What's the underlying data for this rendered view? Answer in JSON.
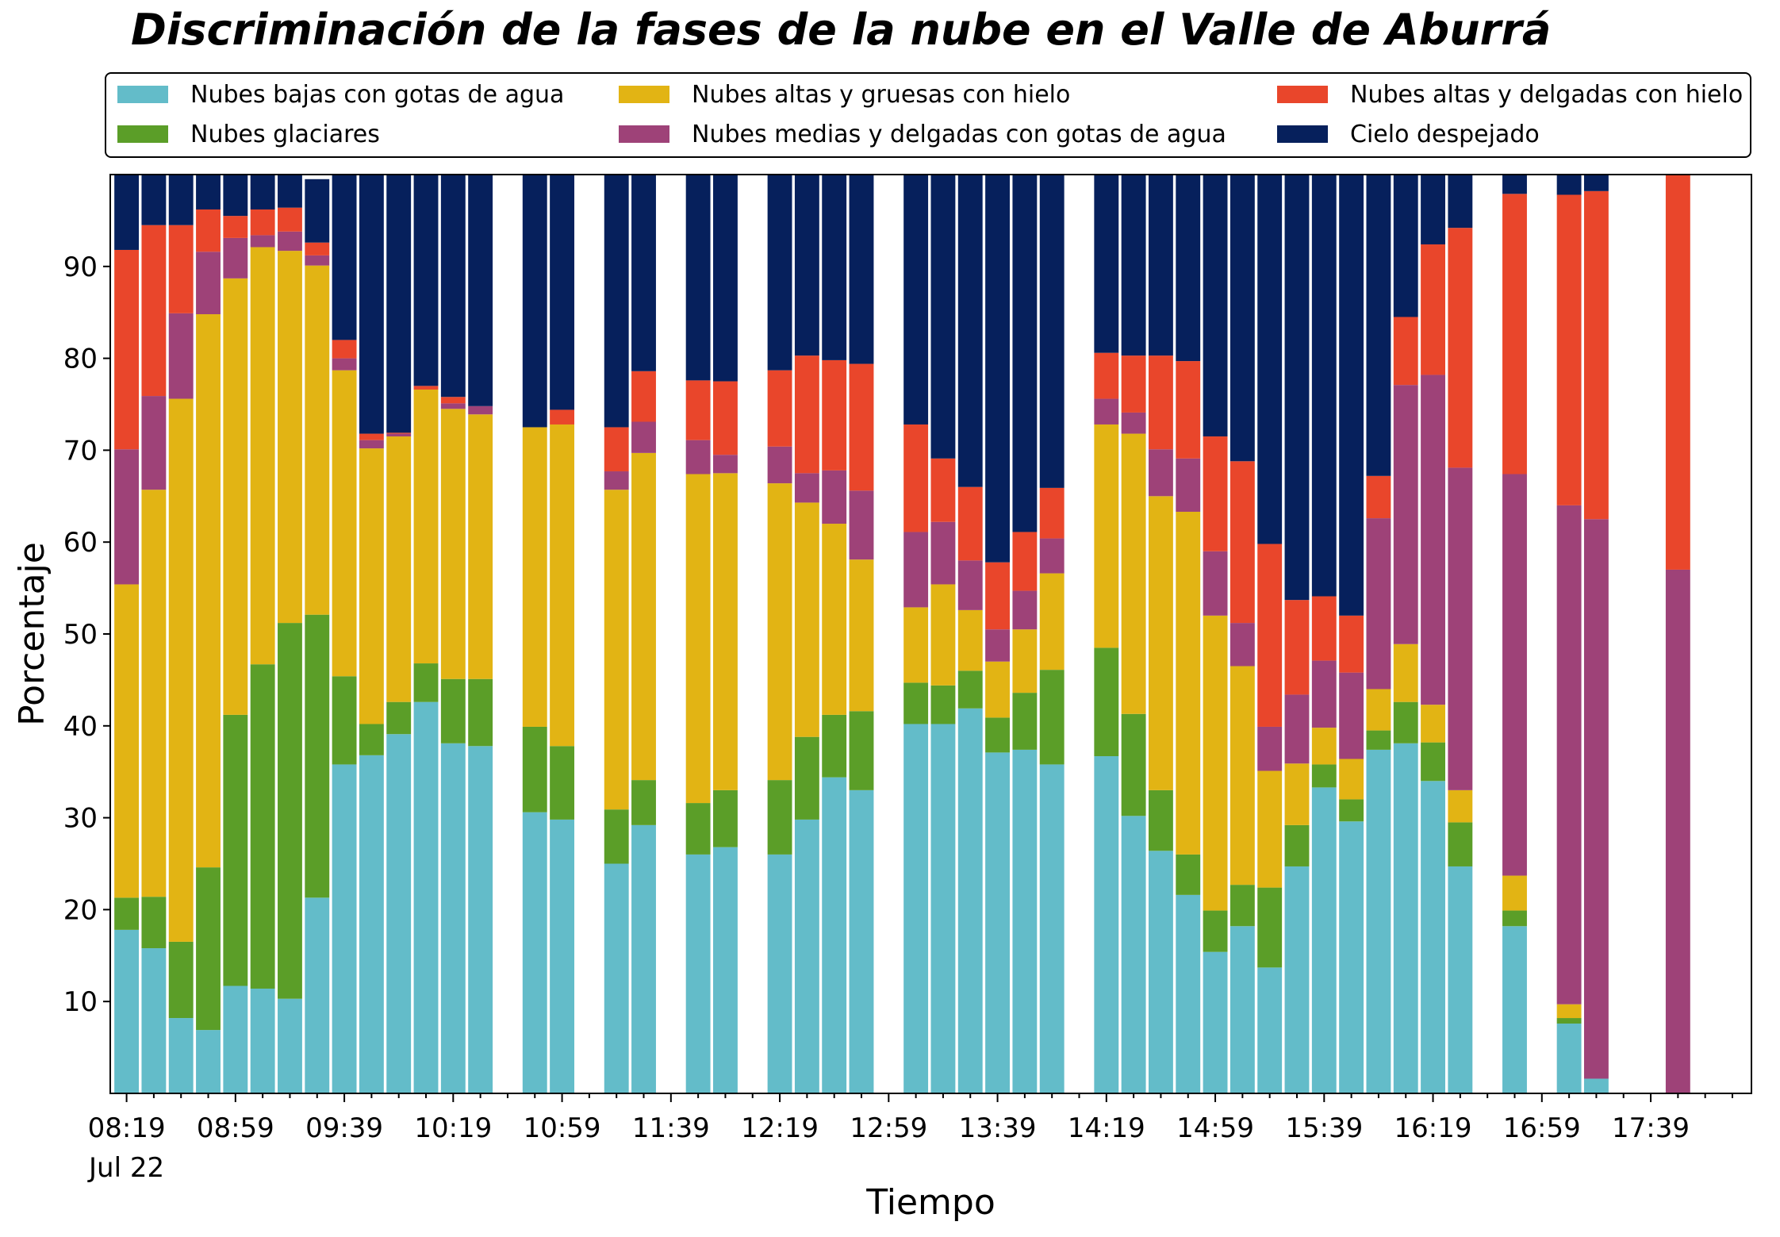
{
  "chart_data": {
    "type": "bar",
    "stacked": true,
    "title": "Discriminación de la fases de la nube en el Valle de Aburrá",
    "xlabel": "Tiempo",
    "ylabel": "Porcentaje",
    "ylim": [
      0,
      100
    ],
    "yticks": [
      10,
      20,
      30,
      40,
      50,
      60,
      70,
      80,
      90
    ],
    "grid": false,
    "legend_position": "top",
    "x_start_time": "08:19",
    "x_end_time": "18:09",
    "x_step_minutes": 10,
    "xticks": [
      {
        "time": "08:19",
        "label": "08:19",
        "sublabel": "Jul 22"
      },
      {
        "time": "08:59",
        "label": "08:59"
      },
      {
        "time": "09:39",
        "label": "09:39"
      },
      {
        "time": "10:19",
        "label": "10:19"
      },
      {
        "time": "10:59",
        "label": "10:59"
      },
      {
        "time": "11:39",
        "label": "11:39"
      },
      {
        "time": "12:19",
        "label": "12:19"
      },
      {
        "time": "12:59",
        "label": "12:59"
      },
      {
        "time": "13:39",
        "label": "13:39"
      },
      {
        "time": "14:19",
        "label": "14:19"
      },
      {
        "time": "14:59",
        "label": "14:59"
      },
      {
        "time": "15:39",
        "label": "15:39"
      },
      {
        "time": "16:19",
        "label": "16:19"
      },
      {
        "time": "16:59",
        "label": "16:59"
      },
      {
        "time": "17:39",
        "label": "17:39"
      }
    ],
    "categories": [
      "08:19",
      "08:29",
      "08:39",
      "08:49",
      "08:59",
      "09:09",
      "09:19",
      "09:29",
      "09:39",
      "09:49",
      "09:59",
      "10:09",
      "10:19",
      "10:29",
      "10:39",
      "10:49",
      "10:59",
      "11:09",
      "11:19",
      "11:29",
      "11:39",
      "11:49",
      "11:59",
      "12:09",
      "12:19",
      "12:29",
      "12:39",
      "12:49",
      "12:59",
      "13:09",
      "13:19",
      "13:29",
      "13:39",
      "13:49",
      "13:59",
      "14:09",
      "14:19",
      "14:29",
      "14:39",
      "14:49",
      "14:59",
      "15:09",
      "15:19",
      "15:29",
      "15:39",
      "15:49",
      "15:59",
      "16:09",
      "16:19",
      "16:29",
      "16:39",
      "16:49",
      "16:59",
      "17:09",
      "17:19",
      "17:29",
      "17:39",
      "17:49",
      "17:59",
      "18:09"
    ],
    "series": [
      {
        "name": "Nubes bajas con gotas de agua",
        "color": "#63bcc9",
        "values": [
          17.8,
          15.8,
          8.2,
          6.9,
          11.7,
          11.4,
          10.3,
          21.3,
          35.8,
          36.8,
          39.1,
          42.6,
          38.1,
          37.8,
          null,
          30.6,
          29.8,
          null,
          25.0,
          29.2,
          null,
          26.0,
          26.8,
          null,
          26.0,
          29.8,
          34.4,
          33.0,
          null,
          40.2,
          40.2,
          41.9,
          37.1,
          37.4,
          35.8,
          null,
          36.7,
          30.2,
          26.4,
          21.6,
          15.4,
          18.2,
          13.7,
          24.7,
          33.3,
          29.6,
          37.4,
          38.1,
          34.0,
          24.7,
          null,
          18.2,
          null,
          7.6,
          1.6,
          null,
          null,
          0,
          null,
          null
        ]
      },
      {
        "name": "Nubes glaciares",
        "color": "#5b9e28",
        "values": [
          3.5,
          5.6,
          8.3,
          17.7,
          29.5,
          35.3,
          40.9,
          30.8,
          9.6,
          3.4,
          3.5,
          4.2,
          7.0,
          7.3,
          null,
          9.3,
          8.0,
          null,
          5.9,
          4.9,
          null,
          5.6,
          6.2,
          null,
          8.1,
          9.0,
          6.8,
          8.6,
          null,
          4.5,
          4.2,
          4.1,
          3.8,
          6.2,
          10.3,
          null,
          11.8,
          11.1,
          6.6,
          4.4,
          4.5,
          4.5,
          8.7,
          4.5,
          2.5,
          2.4,
          2.1,
          4.5,
          4.2,
          4.8,
          null,
          1.7,
          null,
          0.6,
          0,
          null,
          null,
          0,
          null,
          null
        ]
      },
      {
        "name": "Nubes altas y gruesas con hielo",
        "color": "#e2b414",
        "values": [
          34.1,
          44.3,
          59.1,
          60.2,
          47.5,
          45.4,
          40.5,
          38.0,
          33.3,
          30.0,
          28.9,
          29.8,
          29.4,
          28.8,
          null,
          32.6,
          35.0,
          null,
          34.8,
          35.6,
          null,
          35.8,
          34.5,
          null,
          32.3,
          25.5,
          20.8,
          16.5,
          null,
          8.2,
          11.0,
          6.6,
          6.1,
          6.9,
          10.5,
          null,
          24.3,
          30.5,
          32.0,
          37.3,
          32.1,
          23.8,
          12.7,
          6.7,
          4.0,
          4.4,
          4.5,
          6.3,
          4.1,
          3.5,
          null,
          3.8,
          null,
          1.5,
          0,
          null,
          null,
          0,
          null,
          null
        ]
      },
      {
        "name": "Nubes medias y delgadas con gotas de agua",
        "color": "#9e4278",
        "values": [
          14.7,
          10.2,
          9.3,
          6.8,
          4.4,
          1.3,
          2.1,
          1.1,
          1.3,
          0.9,
          0.3,
          0,
          0.6,
          0.9,
          null,
          0,
          0,
          null,
          2.0,
          3.4,
          null,
          3.7,
          2.0,
          null,
          4.0,
          3.2,
          5.8,
          7.5,
          null,
          8.2,
          6.8,
          5.4,
          3.5,
          4.2,
          3.8,
          null,
          2.8,
          2.3,
          5.1,
          5.8,
          7.0,
          4.7,
          4.8,
          7.5,
          7.3,
          9.4,
          18.6,
          28.2,
          35.9,
          35.1,
          null,
          43.7,
          null,
          54.3,
          60.9,
          null,
          null,
          57.0,
          null,
          null
        ]
      },
      {
        "name": "Nubes altas y delgadas con hielo",
        "color": "#e9462b",
        "values": [
          21.7,
          18.6,
          9.6,
          4.6,
          2.4,
          2.8,
          2.6,
          1.4,
          2.0,
          0.7,
          0.1,
          0.4,
          0.7,
          0,
          null,
          0,
          1.6,
          null,
          4.8,
          5.5,
          null,
          6.5,
          8.0,
          null,
          8.3,
          12.8,
          12.0,
          13.8,
          null,
          11.7,
          6.9,
          8.0,
          7.3,
          6.4,
          5.5,
          null,
          5.0,
          6.2,
          10.2,
          10.6,
          12.5,
          17.6,
          19.9,
          10.3,
          7.0,
          6.2,
          4.6,
          7.4,
          14.2,
          26.1,
          null,
          30.5,
          null,
          33.8,
          35.7,
          null,
          null,
          43.0,
          null,
          null
        ]
      },
      {
        "name": "Cielo despejado",
        "color": "#06205c",
        "values": [
          8.2,
          5.5,
          5.5,
          3.8,
          4.5,
          3.8,
          3.6,
          6.9,
          18.0,
          28.2,
          28.1,
          23.0,
          24.2,
          25.2,
          null,
          27.5,
          25.6,
          null,
          27.5,
          21.4,
          null,
          22.4,
          22.5,
          null,
          21.3,
          19.7,
          20.2,
          20.6,
          null,
          27.2,
          30.9,
          34.0,
          42.2,
          38.9,
          34.1,
          null,
          19.4,
          19.7,
          19.7,
          20.3,
          28.5,
          31.2,
          40.2,
          46.3,
          45.9,
          48.0,
          32.8,
          15.5,
          7.6,
          5.8,
          null,
          2.1,
          null,
          2.2,
          1.8,
          null,
          null,
          0,
          null,
          null
        ]
      }
    ]
  }
}
